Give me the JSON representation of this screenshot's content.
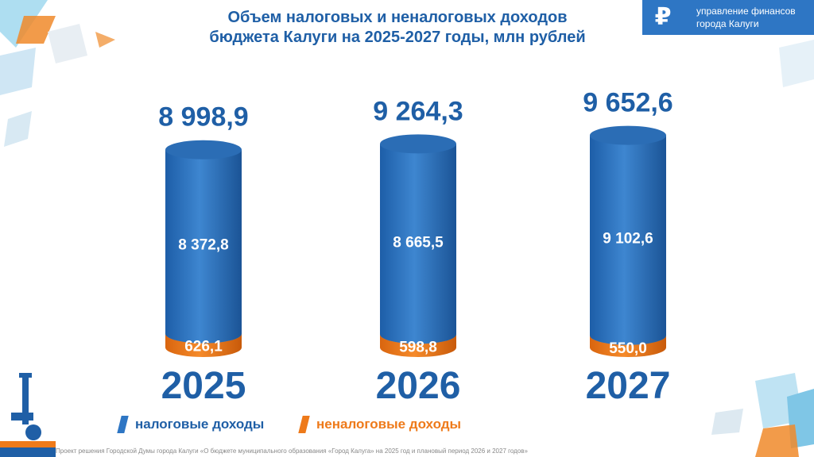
{
  "title": {
    "line1": "Объем налоговых и неналоговых доходов",
    "line2": "бюджета Калуги на 2025-2027 годы, млн рублей"
  },
  "brand": {
    "icon": "ruble-icon",
    "line1": "управление финансов",
    "line2": "города Калуги"
  },
  "colors": {
    "tax": "#2e76c4",
    "non_tax": "#ee7a1a",
    "title": "#1f5fa6"
  },
  "chart_data": {
    "type": "bar",
    "stacked": true,
    "title": "Объем налоговых и неналоговых доходов бюджета Калуги на 2025-2027 годы, млн рублей",
    "categories": [
      "2025",
      "2026",
      "2027"
    ],
    "series": [
      {
        "name": "налоговые доходы",
        "values": [
          8372.8,
          8665.5,
          9102.6
        ],
        "labels": [
          "8 372,8",
          "8 665,5",
          "9 102,6"
        ]
      },
      {
        "name": "неналоговые доходы",
        "values": [
          626.1,
          598.8,
          550.0
        ],
        "labels": [
          "626,1",
          "598,8",
          "550,0"
        ]
      }
    ],
    "totals": [
      8998.9,
      9264.3,
      9652.6
    ],
    "total_labels": [
      "8 998,9",
      "9 264,3",
      "9 652,6"
    ],
    "legend_position": "bottom-left",
    "grid": false
  },
  "footer": "Проект решения Городской Думы города Калуги «О бюджете муниципального образования «Город Калуга» на 2025 год и плановый период 2026 и 2027 годов»"
}
